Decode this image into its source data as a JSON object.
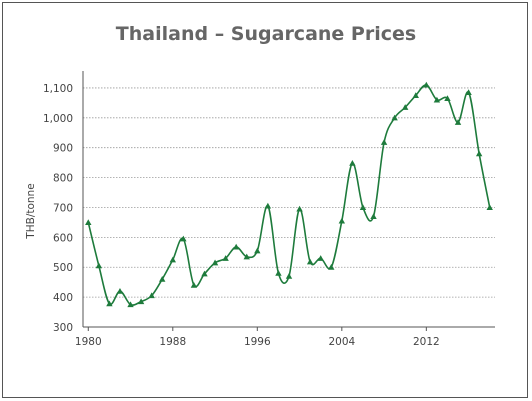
{
  "chart_data": {
    "type": "line",
    "title": "Thailand – Sugarcane Prices",
    "ylabel": "THB/tonne",
    "xlabel": "",
    "ylim": [
      300,
      1150
    ],
    "y_ticks": [
      300,
      400,
      500,
      600,
      700,
      800,
      900,
      1000,
      1100
    ],
    "y_tick_labels": [
      "300",
      "400",
      "500",
      "600",
      "700",
      "800",
      "900",
      "1,000",
      "1,100"
    ],
    "x_ticks": [
      1980,
      1988,
      1996,
      2004,
      2012
    ],
    "xlim": [
      1979.5,
      2018.5
    ],
    "grid": "horizontal-dotted",
    "series": [
      {
        "color": "#1e7b3c",
        "x": [
          1980,
          1981,
          1982,
          1983,
          1984,
          1985,
          1986,
          1987,
          1988,
          1989,
          1990,
          1991,
          1992,
          1993,
          1994,
          1995,
          1996,
          1997,
          1998,
          1999,
          2000,
          2001,
          2002,
          2003,
          2004,
          2005,
          2006,
          2007,
          2008,
          2009,
          2010,
          2011,
          2012,
          2013,
          2014,
          2015,
          2016,
          2017,
          2018
        ],
        "values": [
          650,
          505,
          378,
          420,
          375,
          385,
          405,
          460,
          525,
          595,
          440,
          478,
          515,
          530,
          568,
          535,
          555,
          705,
          480,
          470,
          695,
          518,
          530,
          500,
          655,
          848,
          700,
          670,
          918,
          1000,
          1035,
          1075,
          1110,
          1060,
          1065,
          985,
          1085,
          880,
          700
        ]
      }
    ]
  }
}
